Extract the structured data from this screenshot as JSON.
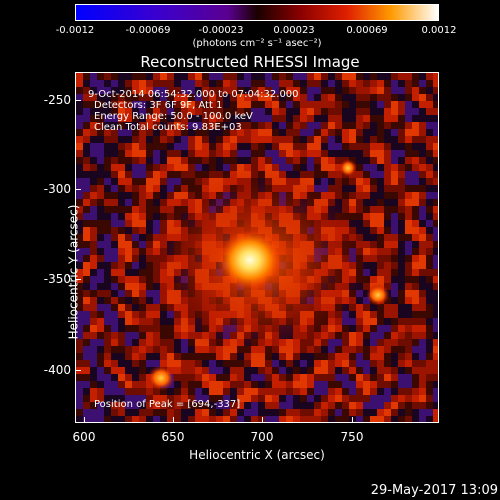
{
  "colorbar": {
    "ticks": [
      "-0.0012",
      "-0.00069",
      "-0.00023",
      "0.00023",
      "0.00069",
      "0.0012"
    ],
    "unit": "(photons cm⁻² s⁻¹ asec⁻²)"
  },
  "title": "Reconstructed RHESSI Image",
  "info": {
    "time": "9-Oct-2014 06:54:32.000 to 07:04:32.000",
    "detectors": "Detectors: 3F 6F 9F, Att 1",
    "energy": "Energy Range: 50.0 - 100.0 keV",
    "clean": "Clean     Total counts: 9.83E+03",
    "peak": "Position of Peak = [694,-337]"
  },
  "axes": {
    "xlabel": "Heliocentric X (arcsec)",
    "ylabel": "Heliocentric Y (arcsec)",
    "xticks": [
      "600",
      "650",
      "700",
      "750"
    ],
    "yticks": [
      "-250",
      "-300",
      "-350",
      "-400"
    ]
  },
  "footer": {
    "date": "29-May-2017 13:09"
  }
}
